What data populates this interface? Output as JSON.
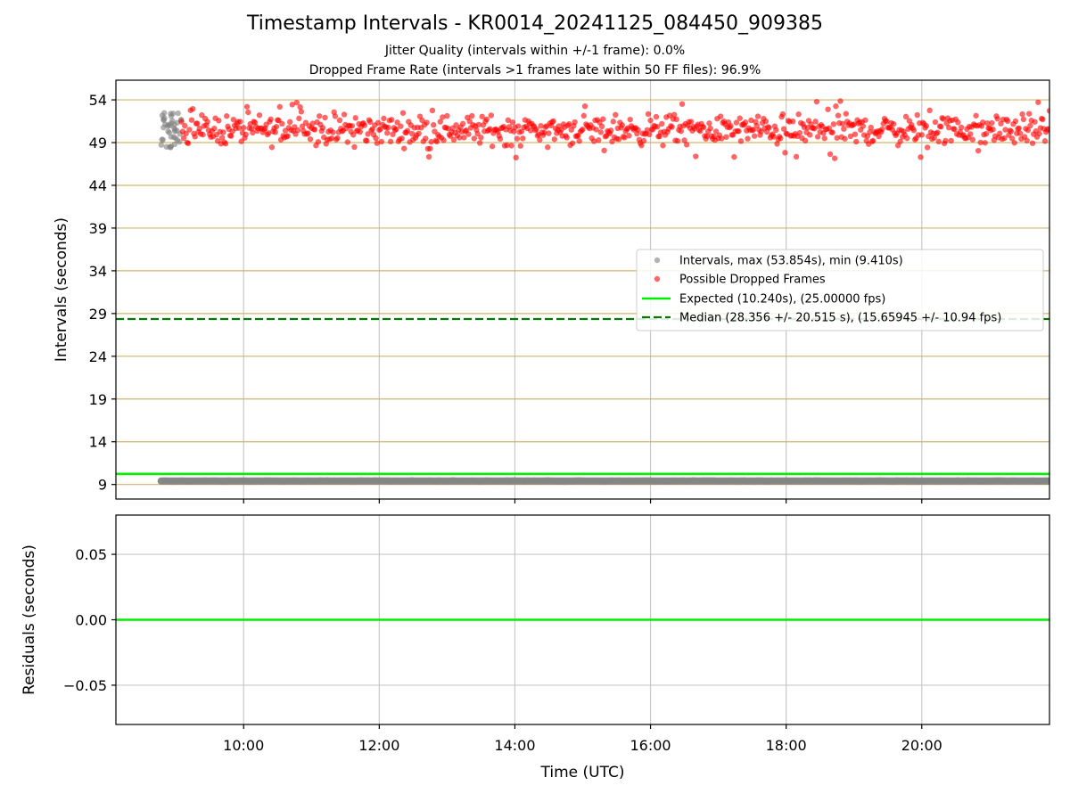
{
  "title": "Timestamp Intervals - KR0014_20241125_084450_909385",
  "subtitle_1": "Jitter Quality (intervals within +/-1 frame): 0.0%",
  "subtitle_2": "Dropped Frame Rate (intervals >1 frames late within 50 FF files): 96.9%",
  "colors": {
    "intervals": "#808080",
    "dropped": "#ff0000",
    "expected": "#00ee00",
    "median": "#007700",
    "hgrid": "#d2b46c",
    "vgrid": "#c8c8c8"
  },
  "chart_data": [
    {
      "type": "scatter",
      "xlabel": "",
      "ylabel": "Intervals (seconds)",
      "x_ticks": [
        "10:00",
        "12:00",
        "14:00",
        "16:00",
        "18:00",
        "20:00"
      ],
      "xlim": [
        "08:07",
        "21:53"
      ],
      "y_ticks": [
        9,
        14,
        19,
        24,
        29,
        34,
        39,
        44,
        49,
        54
      ],
      "ylim": [
        7.3,
        56.3
      ],
      "grid": true,
      "legend_position": "center-right",
      "legend": [
        "Intervals, max (53.854s), min (9.410s)",
        "Possible Dropped Frames",
        "Expected (10.240s), (25.00000 fps)",
        "Median (28.356 +/- 20.515 s), (15.65945 +/- 10.94 fps)"
      ],
      "reference_lines": [
        {
          "name": "Expected (10.240s), (25.00000 fps)",
          "y": 10.24,
          "style": "solid"
        },
        {
          "name": "Median (28.356 +/- 20.515 s), (15.65945 +/- 10.94 fps)",
          "y": 28.356,
          "style": "dashed"
        }
      ],
      "series": [
        {
          "name": "Intervals, max (53.854s), min (9.410s)",
          "description_range": "dense band from 08:47 to 21:53",
          "baseline_y": 9.41,
          "x_start": "08:47",
          "x_end": "21:53",
          "early_cluster": {
            "x_start": "08:47",
            "x_end": "09:05",
            "y_min": 48.3,
            "y_max": 52.5
          }
        },
        {
          "name": "Possible Dropped Frames",
          "x_start": "09:05",
          "x_end": "21:53",
          "y_min": 46.8,
          "y_max": 53.854,
          "y_center": 50.5
        }
      ]
    },
    {
      "type": "line",
      "xlabel": "Time (UTC)",
      "ylabel": "Residuals (seconds)",
      "x_ticks": [
        "10:00",
        "12:00",
        "14:00",
        "16:00",
        "18:00",
        "20:00"
      ],
      "xlim": [
        "08:07",
        "21:53"
      ],
      "y_ticks": [
        "0.05",
        "0.00",
        "−0.05"
      ],
      "y_tick_values": [
        0.05,
        0.0,
        -0.05
      ],
      "ylim": [
        -0.08,
        0.08
      ],
      "grid": true,
      "series": [
        {
          "name": "",
          "y": 0.0
        }
      ]
    }
  ]
}
